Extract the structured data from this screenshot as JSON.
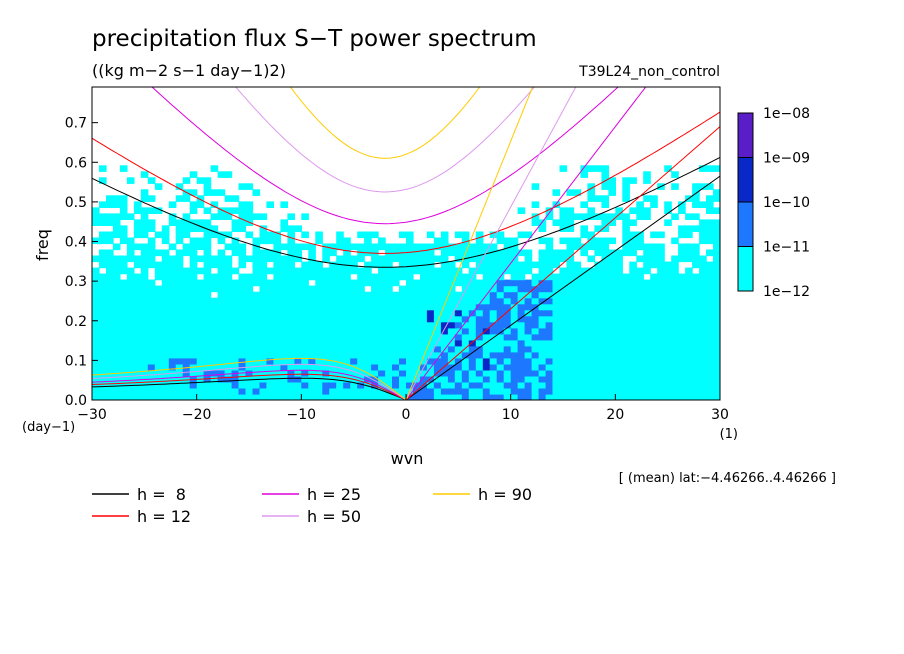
{
  "chart_data": {
    "type": "heatmap",
    "title": "precipitation flux S−T power spectrum",
    "subtitle": "((kg m−2 s−1 day−1)2)",
    "experiment": "T39L24_non_control",
    "xlabel": "wvn",
    "ylabel": "freq",
    "x_unit": "(1)",
    "y_unit": "(day−1)",
    "xlim": [
      -30,
      30
    ],
    "ylim": [
      0.0,
      0.79
    ],
    "x_ticks": [
      -30,
      -20,
      -10,
      0,
      10,
      20,
      30
    ],
    "x_tick_labels": [
      "−30",
      "−20",
      "−10",
      "0",
      "10",
      "20",
      "30"
    ],
    "y_ticks": [
      0.0,
      0.1,
      0.2,
      0.3,
      0.4,
      0.5,
      0.6,
      0.7
    ],
    "y_tick_labels": [
      "0.0",
      "0.1",
      "0.2",
      "0.3",
      "0.4",
      "0.5",
      "0.6",
      "0.7"
    ],
    "colorbar": {
      "levels": [
        "1e−12",
        "1e−11",
        "1e−10",
        "1e−09",
        "1e−08"
      ],
      "colors": [
        "#00ffff",
        "#1e78ff",
        "#0a28c8",
        "#5a1ec8"
      ]
    },
    "annotation": "[ (mean) lat:−4.46266..4.46266 ]",
    "legend_title_prefix": "h = ",
    "equivalent_depths": [
      {
        "label": "h =  8",
        "h": 8,
        "color": "#000000"
      },
      {
        "label": "h = 12",
        "h": 12,
        "color": "#ff0000"
      },
      {
        "label": "h = 25",
        "h": 25,
        "color": "#dd00dd"
      },
      {
        "label": "h = 50",
        "h": 50,
        "color": "#dd99ee"
      },
      {
        "label": "h = 90",
        "h": 90,
        "color": "#ffcc00"
      }
    ],
    "series": [
      {
        "name": "h =  8",
        "kelvin_freq_at_wvn30": 0.565,
        "n1_min_freq": 0.335,
        "rossby_max_freq": 0.055
      },
      {
        "name": "h = 12",
        "kelvin_freq_at_wvn30": 0.69,
        "n1_min_freq": 0.37,
        "rossby_max_freq": 0.065
      },
      {
        "name": "h = 25",
        "n1_min_freq": 0.445,
        "rossby_max_freq": 0.075
      },
      {
        "name": "h = 50",
        "n1_min_freq": 0.525,
        "rossby_max_freq": 0.09
      },
      {
        "name": "h = 90",
        "n1_min_freq": 0.61,
        "rossby_max_freq": 0.105
      }
    ]
  }
}
